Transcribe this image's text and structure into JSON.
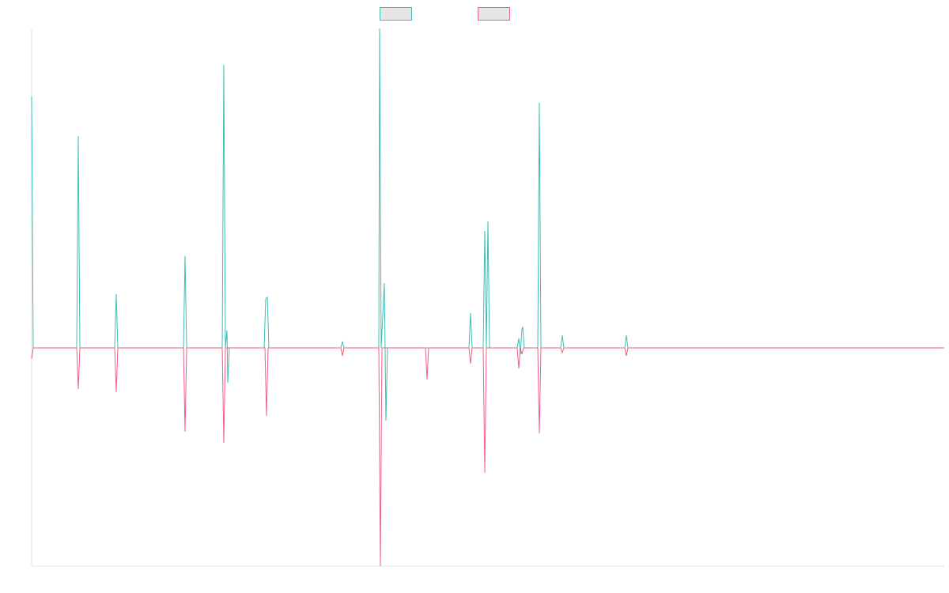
{
  "chart_data": {
    "type": "line",
    "xlim": [
      0,
      1154
    ],
    "ylim": [
      -69,
      101
    ],
    "series": [
      {
        "color": "#3dbdb5",
        "x": [
          0,
          2,
          57,
          59,
          61,
          105,
          107,
          109,
          192,
          194,
          196,
          241,
          243,
          245,
          247,
          248,
          250,
          294,
          296,
          298,
          300,
          391,
          393,
          395,
          439,
          440,
          442,
          446,
          448,
          450,
          553,
          555,
          557,
          571,
          573,
          575,
          577,
          579,
          614,
          616,
          618,
          620,
          621,
          623,
          640,
          642,
          644,
          669,
          671,
          673,
          750,
          752,
          754,
          1154
        ],
        "values": [
          79.5,
          0,
          0,
          67,
          0,
          0,
          17,
          0,
          0,
          29,
          0,
          0,
          89.5,
          0,
          5.5,
          -11,
          0,
          0,
          15.5,
          16,
          0,
          0,
          2,
          0,
          0,
          101,
          0,
          20.5,
          -23,
          0,
          0,
          11,
          0,
          0,
          37,
          0,
          40,
          0,
          0,
          3,
          -2,
          6,
          6.5,
          0,
          0,
          77.5,
          0,
          0,
          4,
          0,
          0,
          4,
          0,
          0
        ]
      },
      {
        "color": "#ef5f85",
        "x": [
          0,
          2,
          57,
          59,
          61,
          105,
          107,
          109,
          192,
          194,
          196,
          241,
          243,
          245,
          295,
          297,
          299,
          391,
          393,
          395,
          439,
          441,
          443,
          498,
          500,
          502,
          553,
          555,
          557,
          571,
          573,
          575,
          614,
          616,
          618,
          620,
          622,
          640,
          642,
          644,
          669,
          671,
          673,
          750,
          752,
          754,
          1154
        ],
        "values": [
          -3.5,
          0,
          0,
          -13,
          0,
          0,
          -14,
          0,
          0,
          -26.5,
          0,
          0,
          -30,
          0,
          0,
          -21.5,
          0,
          0,
          -2.5,
          0,
          0,
          -69,
          0,
          0,
          -10,
          0,
          0,
          -5,
          0,
          0,
          -39.5,
          0,
          0,
          -6.5,
          0,
          -2,
          0,
          0,
          -27,
          0,
          0,
          -1.5,
          0,
          0,
          -2.5,
          0,
          0
        ]
      }
    ]
  }
}
